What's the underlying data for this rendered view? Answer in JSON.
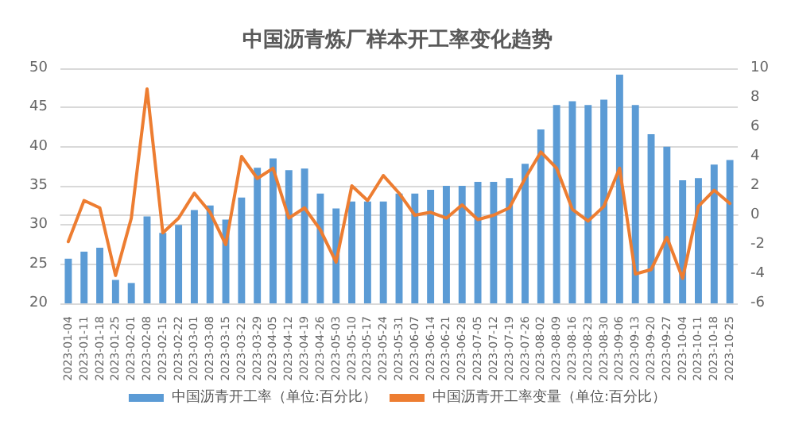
{
  "chart_data": {
    "type": "bar",
    "title": "中国沥青炼厂样本开工率变化趋势",
    "categories": [
      "2023-01-04",
      "2023-01-11",
      "2023-01-18",
      "2023-01-25",
      "2023-02-01",
      "2023-02-08",
      "2023-02-15",
      "2023-02-22",
      "2023-03-01",
      "2023-03-08",
      "2023-03-15",
      "2023-03-22",
      "2023-03-29",
      "2023-04-05",
      "2023-04-12",
      "2023-04-19",
      "2023-04-26",
      "2023-05-03",
      "2023-05-10",
      "2023-05-17",
      "2023-05-24",
      "2023-05-31",
      "2023-06-07",
      "2023-06-14",
      "2023-06-21",
      "2023-06-28",
      "2023-07-05",
      "2023-07-12",
      "2023-07-19",
      "2023-07-26",
      "2023-08-02",
      "2023-08-09",
      "2023-08-16",
      "2023-08-23",
      "2023-08-30",
      "2023-09-06",
      "2023-09-13",
      "2023-09-20",
      "2023-09-27",
      "2023-10-04",
      "2023-10-11",
      "2023-10-18",
      "2023-10-25"
    ],
    "series": [
      {
        "name": "中国沥青开工率（单位:百分比）",
        "color": "#5b9bd5",
        "values": [
          25.7,
          26.6,
          27.1,
          23.0,
          22.6,
          31.1,
          29.0,
          30.0,
          31.9,
          32.5,
          30.7,
          33.5,
          37.3,
          38.5,
          37.0,
          37.2,
          34.0,
          32.1,
          33.0,
          33.0,
          33.0,
          34.0,
          34.0,
          34.5,
          35.0,
          35.0,
          35.5,
          35.5,
          36.0,
          37.8,
          42.2,
          45.3,
          45.8,
          45.3,
          46.0,
          49.2,
          45.3,
          41.6,
          40.0,
          35.7,
          36.0,
          37.7,
          38.3
        ]
      },
      {
        "name": "中国沥青开工率变量（单位:百分比）",
        "type": "line",
        "axis": "y2",
        "color": "#ed7d31",
        "values": [
          -1.8,
          1.0,
          0.5,
          -4.1,
          -0.2,
          8.6,
          -1.2,
          -0.2,
          1.5,
          0.2,
          -2.0,
          4.0,
          2.5,
          3.2,
          -0.2,
          0.5,
          -1.0,
          -3.2,
          2.0,
          1.0,
          2.7,
          1.5,
          0.0,
          0.2,
          -0.2,
          0.7,
          -0.3,
          0.0,
          0.5,
          2.5,
          4.3,
          3.2,
          0.4,
          -0.4,
          0.6,
          3.2,
          -4.0,
          -3.7,
          -1.5,
          -4.3,
          0.6,
          1.7,
          0.8
        ]
      }
    ],
    "ylim": [
      20,
      50
    ],
    "yticks": [
      20,
      25,
      30,
      35,
      40,
      45,
      50
    ],
    "y2lim": [
      -6,
      10
    ],
    "y2ticks": [
      -6,
      -4,
      -2,
      0,
      2,
      4,
      6,
      8,
      10
    ],
    "grid": "y",
    "legend": "bottom",
    "marker": "none",
    "line_style": "solid"
  }
}
